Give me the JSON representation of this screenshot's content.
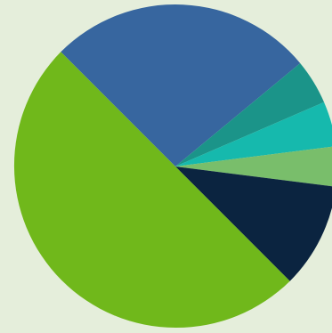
{
  "chart_data": {
    "type": "pie",
    "start_angle_deg": -135,
    "direction": "clockwise",
    "legend": "none",
    "slices": [
      {
        "value": 26.5,
        "color": "#37669f"
      },
      {
        "value": 4.5,
        "color": "#1b9489"
      },
      {
        "value": 4.5,
        "color": "#16b9ad"
      },
      {
        "value": 4.0,
        "color": "#79be6b"
      },
      {
        "value": 10.5,
        "color": "#0b2440"
      },
      {
        "value": 50.0,
        "color": "#70b81b"
      }
    ]
  }
}
